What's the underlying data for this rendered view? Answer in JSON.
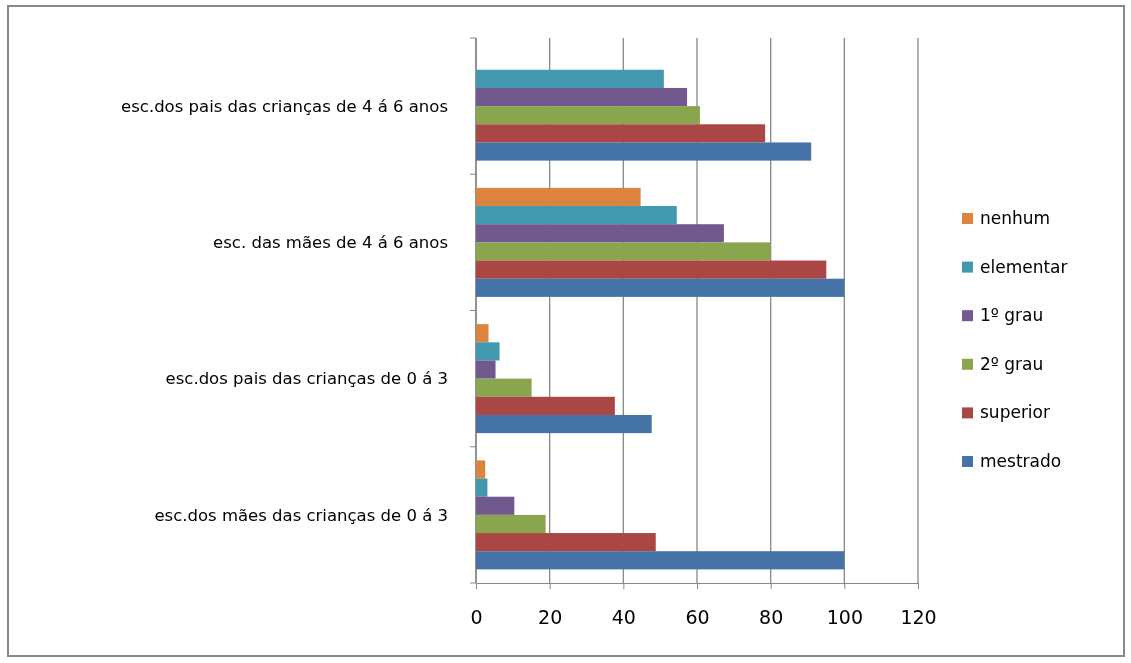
{
  "chart_data": {
    "type": "bar",
    "orientation": "horizontal",
    "categories": [
      "esc.dos pais das crianças de 4 á 6 anos",
      "esc. das mães de 4 á 6 anos",
      "esc.dos pais das crianças de 0 á 3",
      "esc.dos mães das crianças de 0 á 3"
    ],
    "series": [
      {
        "name": "nenhum",
        "color": "#db843d",
        "values": [
          null,
          44.7,
          3.4,
          2.5
        ]
      },
      {
        "name": "elementar",
        "color": "#4198af",
        "values": [
          51.0,
          54.5,
          6.4,
          3.1
        ]
      },
      {
        "name": "1º grau",
        "color": "#71588f",
        "values": [
          57.3,
          67.3,
          5.3,
          10.4
        ]
      },
      {
        "name": "2º grau",
        "color": "#89a54e",
        "values": [
          60.8,
          80,
          15.1,
          18.9
        ]
      },
      {
        "name": "superior",
        "color": "#aa4643",
        "values": [
          78.5,
          95.1,
          37.7,
          48.8
        ]
      },
      {
        "name": "mestrado",
        "color": "#4572a7",
        "values": [
          91.0,
          100,
          47.7,
          100
        ]
      }
    ],
    "xlim": [
      0,
      120
    ],
    "xticks": [
      0,
      20,
      40,
      60,
      80,
      100,
      120
    ],
    "grid": "x",
    "legend": "right"
  }
}
